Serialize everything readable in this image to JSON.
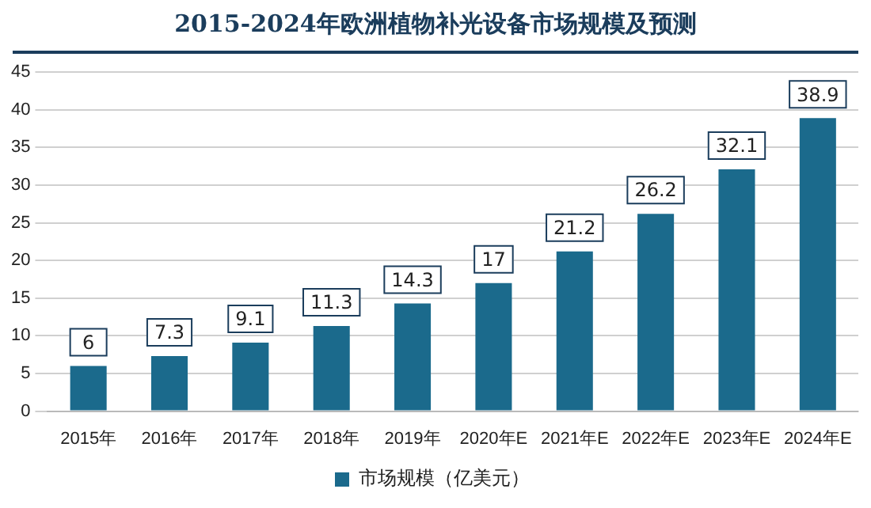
{
  "chart_data": {
    "type": "bar",
    "title": "2015-2024年欧洲植物补光设备市场规模及预测",
    "categories": [
      "2015年",
      "2016年",
      "2017年",
      "2018年",
      "2019年",
      "2020年E",
      "2021年E",
      "2022年E",
      "2023年E",
      "2024年E"
    ],
    "series": [
      {
        "name": "市场规模（亿美元）",
        "color": "#1b6a8c",
        "values": [
          6,
          7.3,
          9.1,
          11.3,
          14.3,
          17,
          21.2,
          26.2,
          32.1,
          38.9
        ]
      }
    ],
    "ylim": [
      0,
      45
    ],
    "yticks": [
      0,
      5,
      10,
      15,
      20,
      25,
      30,
      35,
      40,
      45
    ],
    "grid": "y",
    "legend": "bottom",
    "data_labels": true
  }
}
